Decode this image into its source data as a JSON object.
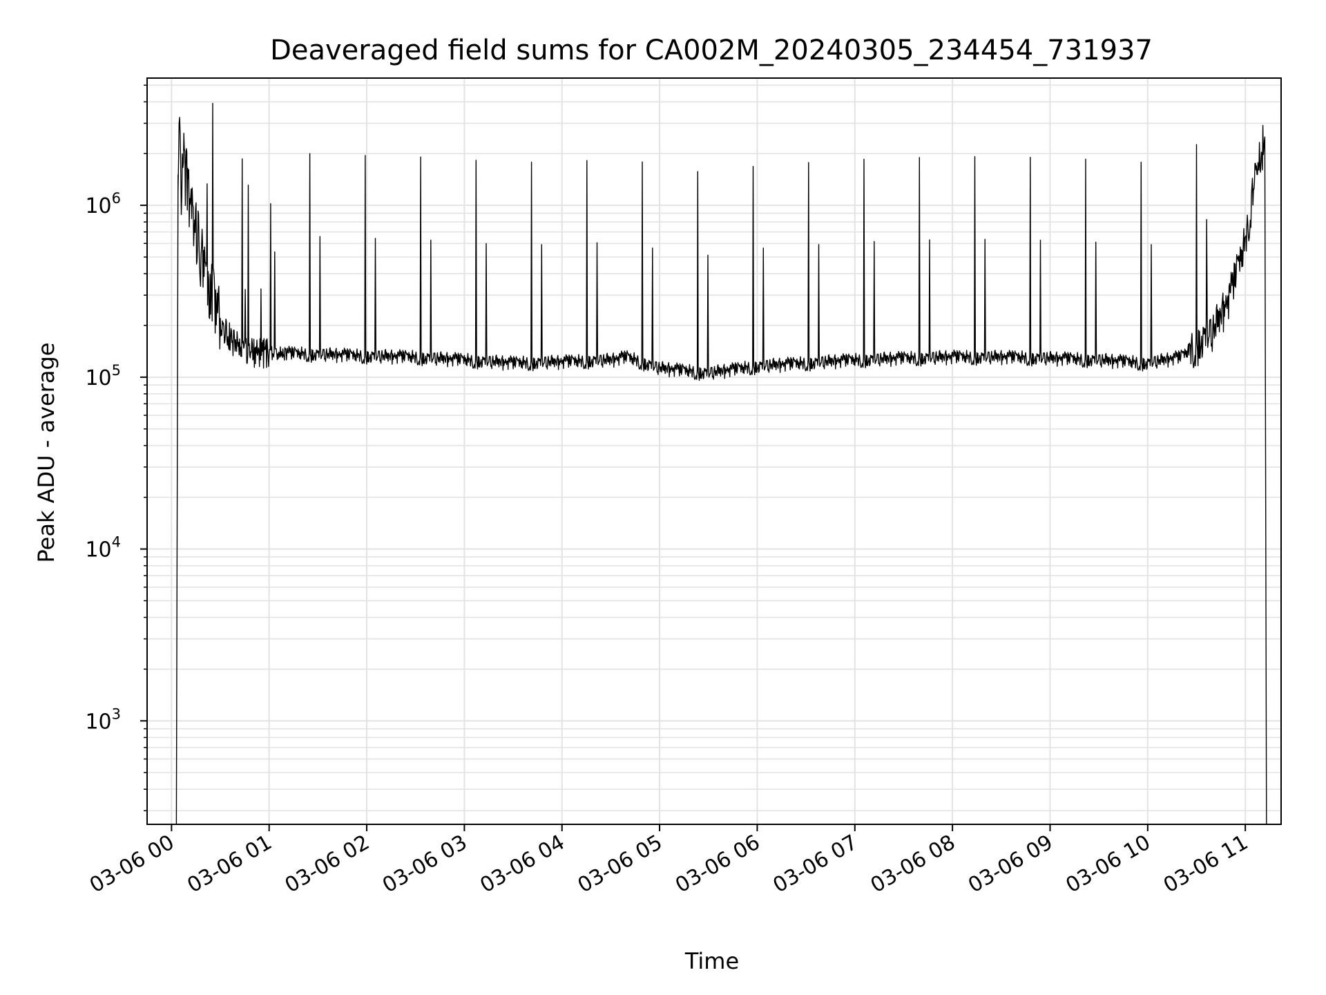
{
  "chart_data": {
    "type": "line",
    "title": "Deaveraged field sums for CA002M_20240305_234454_731937",
    "xlabel": "Time",
    "ylabel": "Peak ADU - average",
    "xlim": [
      "2024-03-05 23:45",
      "2024-03-06 11:22"
    ],
    "ylim": [
      250,
      5500000
    ],
    "yscale": "log",
    "grid": true,
    "x_ticks": [
      "03-06 00",
      "03-06 01",
      "03-06 02",
      "03-06 03",
      "03-06 04",
      "03-06 05",
      "03-06 06",
      "03-06 07",
      "03-06 08",
      "03-06 09",
      "03-06 10",
      "03-06 11"
    ],
    "y_ticks": [
      {
        "value": 1000,
        "base": "10",
        "exp": "3"
      },
      {
        "value": 10000,
        "base": "10",
        "exp": "4"
      },
      {
        "value": 100000,
        "base": "10",
        "exp": "5"
      },
      {
        "value": 1000000,
        "base": "10",
        "exp": "6"
      }
    ],
    "line_color": "#000000",
    "series": [
      {
        "x": [
          "2024-03-06 00:03",
          "2024-03-06 00:04",
          "2024-03-06 00:05",
          "2024-03-06 00:06",
          "2024-03-06 00:07",
          "2024-03-06 00:10",
          "2024-03-06 00:13",
          "2024-03-06 00:16",
          "2024-03-06 00:20",
          "2024-03-06 00:25",
          "2024-03-06 00:30",
          "2024-03-06 00:40",
          "2024-03-06 00:50",
          "2024-03-06 01:00",
          "2024-03-06 01:30",
          "2024-03-06 02:00",
          "2024-03-06 02:30",
          "2024-03-06 03:00",
          "2024-03-06 03:30",
          "2024-03-06 04:00",
          "2024-03-06 04:30",
          "2024-03-06 04:40",
          "2024-03-06 05:00",
          "2024-03-06 05:30",
          "2024-03-06 06:00",
          "2024-03-06 06:30",
          "2024-03-06 07:00",
          "2024-03-06 07:30",
          "2024-03-06 08:00",
          "2024-03-06 08:30",
          "2024-03-06 09:00",
          "2024-03-06 09:30",
          "2024-03-06 10:00",
          "2024-03-06 10:20",
          "2024-03-06 10:40",
          "2024-03-06 10:50",
          "2024-03-06 11:00",
          "2024-03-06 11:05",
          "2024-03-06 11:09",
          "2024-03-06 11:12",
          "2024-03-06 11:13"
        ],
        "y": [
          250,
          1500000,
          3000000,
          800000,
          2000000,
          1200000,
          900000,
          600000,
          450000,
          300000,
          200000,
          150000,
          140000,
          138000,
          135000,
          132000,
          130000,
          125000,
          120000,
          122000,
          125000,
          130000,
          112000,
          105000,
          115000,
          120000,
          125000,
          128000,
          130000,
          130000,
          128000,
          125000,
          120000,
          130000,
          180000,
          280000,
          600000,
          1200000,
          1800000,
          2500000,
          250
        ]
      }
    ]
  }
}
